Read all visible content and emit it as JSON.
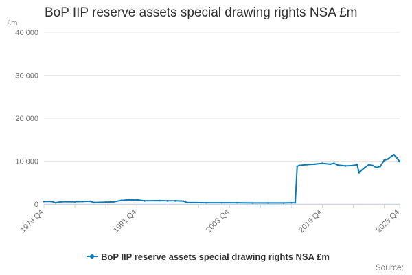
{
  "title": "BoP IIP reserve assets special drawing rights NSA £m",
  "unit": "£m",
  "source": "Source:",
  "colors": {
    "series": "#0b7bb8",
    "grid": "#e6e6e6",
    "axis": "#ccd6eb",
    "text": "#707071"
  },
  "chart_data": {
    "type": "line",
    "title": "BoP IIP reserve assets special drawing rights NSA £m",
    "ylabel": "£m",
    "ylim": [
      0,
      40000
    ],
    "yticks": [
      0,
      10000,
      20000,
      30000,
      40000
    ],
    "ytick_labels": [
      "0",
      "10 000",
      "20 000",
      "30 000",
      "40 000"
    ],
    "xlim": [
      "1979 Q4",
      "2025 Q4"
    ],
    "xtick_labels": [
      "1979 Q4",
      "1991 Q4",
      "2003 Q4",
      "2015 Q4",
      "2025 Q4"
    ],
    "grid": true,
    "legend": "bottom",
    "series": [
      {
        "name": "BoP IIP reserve assets special drawing rights NSA £m",
        "points": [
          [
            "1979 Q4",
            600
          ],
          [
            "1980 Q4",
            600
          ],
          [
            "1981 Q2",
            300
          ],
          [
            "1982 Q1",
            550
          ],
          [
            "1983 Q4",
            550
          ],
          [
            "1984 Q4",
            600
          ],
          [
            "1985 Q4",
            650
          ],
          [
            "1986 Q2",
            350
          ],
          [
            "1987 Q4",
            450
          ],
          [
            "1988 Q4",
            500
          ],
          [
            "1989 Q4",
            850
          ],
          [
            "1990 Q4",
            1000
          ],
          [
            "1991 Q2",
            950
          ],
          [
            "1991 Q4",
            1000
          ],
          [
            "1992 Q4",
            750
          ],
          [
            "1994 Q4",
            800
          ],
          [
            "1995 Q4",
            750
          ],
          [
            "1996 Q4",
            750
          ],
          [
            "1997 Q4",
            700
          ],
          [
            "1998 Q2",
            350
          ],
          [
            "2000 Q4",
            300
          ],
          [
            "2002 Q4",
            300
          ],
          [
            "2004 Q4",
            300
          ],
          [
            "2006 Q4",
            250
          ],
          [
            "2008 Q4",
            250
          ],
          [
            "2010 Q4",
            250
          ],
          [
            "2011 Q4",
            300
          ],
          [
            "2012 Q2",
            300
          ],
          [
            "2012 Q3",
            8800
          ],
          [
            "2012 Q4",
            9000
          ],
          [
            "2013 Q4",
            9200
          ],
          [
            "2014 Q4",
            9300
          ],
          [
            "2015 Q4",
            9500
          ],
          [
            "2016 Q4",
            9300
          ],
          [
            "2017 Q2",
            9500
          ],
          [
            "2017 Q4",
            9100
          ],
          [
            "2018 Q4",
            8900
          ],
          [
            "2019 Q4",
            9000
          ],
          [
            "2020 Q2",
            9200
          ],
          [
            "2020 Q3",
            7300
          ],
          [
            "2020 Q4",
            7800
          ],
          [
            "2021 Q2",
            8500
          ],
          [
            "2021 Q4",
            9200
          ],
          [
            "2022 Q2",
            9000
          ],
          [
            "2022 Q4",
            8500
          ],
          [
            "2023 Q2",
            8800
          ],
          [
            "2023 Q4",
            10200
          ],
          [
            "2024 Q2",
            10500
          ],
          [
            "2024 Q4",
            11200
          ],
          [
            "2025 Q1",
            11500
          ],
          [
            "2025 Q2",
            11000
          ],
          [
            "2025 Q3",
            10500
          ],
          [
            "2025 Q4",
            9900
          ]
        ]
      }
    ]
  }
}
